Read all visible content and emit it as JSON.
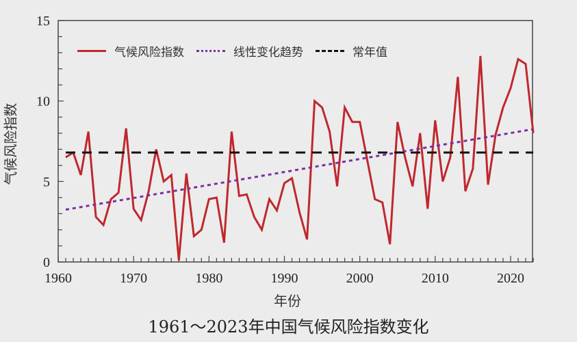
{
  "chart_data": {
    "type": "line",
    "title": "1961～2023年中国气候风险指数变化",
    "xlabel": "年份",
    "ylabel": "气候风险指数",
    "xlim": [
      1960,
      2023
    ],
    "ylim": [
      0,
      15
    ],
    "xticks": [
      1960,
      1970,
      1980,
      1990,
      2000,
      2010,
      2020
    ],
    "yticks": [
      0,
      5,
      10,
      15
    ],
    "grid": false,
    "legend_position": "upper left",
    "x": [
      1961,
      1962,
      1963,
      1964,
      1965,
      1966,
      1967,
      1968,
      1969,
      1970,
      1971,
      1972,
      1973,
      1974,
      1975,
      1976,
      1977,
      1978,
      1979,
      1980,
      1981,
      1982,
      1983,
      1984,
      1985,
      1986,
      1987,
      1988,
      1989,
      1990,
      1991,
      1992,
      1993,
      1994,
      1995,
      1996,
      1997,
      1998,
      1999,
      2000,
      2001,
      2002,
      2003,
      2004,
      2005,
      2006,
      2007,
      2008,
      2009,
      2010,
      2011,
      2012,
      2013,
      2014,
      2015,
      2016,
      2017,
      2018,
      2019,
      2020,
      2021,
      2022,
      2023
    ],
    "series": [
      {
        "name": "气候风险指数",
        "style": "solid",
        "color": "#c0272d",
        "values": [
          6.5,
          6.8,
          5.4,
          8.1,
          2.8,
          2.3,
          3.9,
          4.3,
          8.3,
          3.3,
          2.6,
          4.4,
          7.0,
          5.0,
          5.4,
          0.1,
          5.5,
          1.6,
          2.0,
          3.9,
          4.0,
          1.2,
          8.1,
          4.1,
          4.2,
          2.8,
          2.0,
          3.9,
          3.2,
          4.9,
          5.2,
          3.1,
          1.4,
          10.0,
          9.6,
          8.1,
          4.7,
          9.6,
          8.7,
          8.7,
          6.3,
          3.9,
          3.7,
          1.1,
          8.7,
          6.5,
          4.7,
          8.0,
          3.3,
          8.8,
          5.0,
          6.5,
          11.5,
          4.4,
          5.8,
          12.8,
          4.8,
          7.9,
          9.6,
          10.8,
          12.6,
          12.3,
          8.0
        ]
      },
      {
        "name": "线性变化趋势",
        "style": "dotted",
        "color": "#7b2fa0",
        "x": [
          1961,
          2023
        ],
        "values": [
          3.25,
          8.25
        ]
      },
      {
        "name": "常年值",
        "style": "dashed",
        "color": "#111111",
        "x": [
          1961,
          2023
        ],
        "values": [
          6.8,
          6.8
        ]
      }
    ]
  },
  "labels": {
    "title": "1961～2023年中国气候风险指数变化",
    "xlabel": "年份",
    "ylabel": "气候风险指数",
    "legend": [
      "气候风险指数",
      "线性变化趋势",
      "常年值"
    ]
  }
}
